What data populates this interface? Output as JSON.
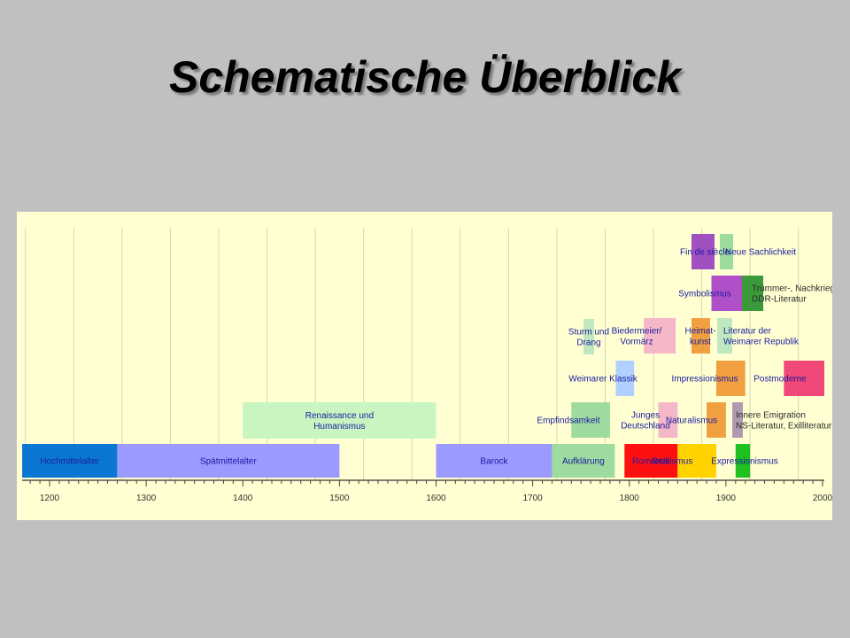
{
  "title": "Schematische Überblick",
  "timeline": {
    "start_year": 1175,
    "end_year": 2035,
    "axis_labels": [
      "1200",
      "1300",
      "1400",
      "1500",
      "1600",
      "1700",
      "1800",
      "1900",
      "2000"
    ],
    "axis_values": [
      1200,
      1300,
      1400,
      1500,
      1600,
      1700,
      1800,
      1900,
      2000
    ],
    "epochs": [
      {
        "name": "epoch-hochmittelalter",
        "label": "Hochmittelalter",
        "start": 1170,
        "end": 1270,
        "row": 0,
        "color": "#0a78d2"
      },
      {
        "name": "epoch-spaetmittelalter",
        "label": "Spätmittelalter",
        "start": 1270,
        "end": 1500,
        "row": 0,
        "color": "#9a9aff"
      },
      {
        "name": "epoch-renaissance",
        "label": "Renaissance und Humanismus",
        "start": 1400,
        "end": 1600,
        "row": 1,
        "color": "#c8f5c0"
      },
      {
        "name": "epoch-barock",
        "label": "Barock",
        "start": 1600,
        "end": 1720,
        "row": 0,
        "color": "#9a9aff"
      },
      {
        "name": "epoch-aufklaerung",
        "label": "Aufklärung",
        "start": 1720,
        "end": 1785,
        "row": 0,
        "color": "#9edb9e"
      },
      {
        "name": "epoch-empfindsamkeit",
        "label": "Empfindsamkeit",
        "start": 1740,
        "end": 1780,
        "row": 1,
        "color": "#9edb9e"
      },
      {
        "name": "epoch-weimarer-klassik",
        "label": "Weimarer Klassik",
        "start": 1786,
        "end": 1805,
        "row": 2,
        "color": "#b0d0ff"
      },
      {
        "name": "epoch-sturm-und-drang",
        "label": "Sturm und Drang",
        "start": 1767,
        "end": 1785,
        "row": 3,
        "color": "#bfe8bf"
      },
      {
        "name": "epoch-romantik",
        "label": "Romantik",
        "start": 1795,
        "end": 1850,
        "row": 0,
        "color": "#ff1010"
      },
      {
        "name": "epoch-biedermeier",
        "label": "Biedermeier/ Vormärz",
        "start": 1815,
        "end": 1848,
        "row": 3,
        "color": "#f5b8c8"
      },
      {
        "name": "epoch-junges-deutschland",
        "label": "Junges Deutschland",
        "start": 1830,
        "end": 1850,
        "row": 1,
        "color": "#f5b8c8"
      },
      {
        "name": "epoch-realismus",
        "label": "Realismus",
        "start": 1850,
        "end": 1890,
        "row": 0,
        "color": "#ffd200"
      },
      {
        "name": "epoch-naturalismus",
        "label": "Naturalismus",
        "start": 1880,
        "end": 1900,
        "row": 1,
        "color": "#f0a040"
      },
      {
        "name": "epoch-impressionismus",
        "label": "Impressionismus",
        "start": 1890,
        "end": 1920,
        "row": 2,
        "color": "#f0a040"
      },
      {
        "name": "epoch-heimatkunst",
        "label": "Heimat- kunst",
        "start": 1890,
        "end": 1910,
        "row": 3,
        "color": "#f0a040"
      },
      {
        "name": "epoch-symbolismus",
        "label": "Symbolismus",
        "start": 1885,
        "end": 1925,
        "row": 4,
        "color": "#b050c8"
      },
      {
        "name": "epoch-fin-de-siecle",
        "label": "Fin de siècle",
        "start": 1885,
        "end": 1910,
        "row": 5,
        "color": "#a050c0"
      },
      {
        "name": "epoch-neue-sachlichkeit",
        "label": "Neue Sachlichkeit",
        "start": 1920,
        "end": 1933,
        "row": 5,
        "color": "#9edb9e"
      },
      {
        "name": "epoch-expressionismus",
        "label": "Expressionismus",
        "start": 1910,
        "end": 1925,
        "row": 0,
        "color": "#20c020"
      },
      {
        "name": "epoch-literatur-weimarer-republik",
        "label": "Literatur der Weimarer Republik",
        "start": 1918,
        "end": 1933,
        "row": 3,
        "color": "#bfe8bf"
      },
      {
        "name": "epoch-innere-emigration",
        "label": "Innere Emigration NS-Literatur, Exilliteratur",
        "start": 1933,
        "end": 1945,
        "row": 1,
        "color": "#b09ab0"
      },
      {
        "name": "epoch-truemmer",
        "label": "Trümmer-, Nachkriegs- DDR-Literatur",
        "start": 1945,
        "end": 1968,
        "row": 4,
        "color": "#3a9a3a"
      },
      {
        "name": "epoch-postmoderne",
        "label": "Postmoderne",
        "start": 1960,
        "end": 2010,
        "row": 2,
        "color": "#f04878"
      }
    ]
  }
}
